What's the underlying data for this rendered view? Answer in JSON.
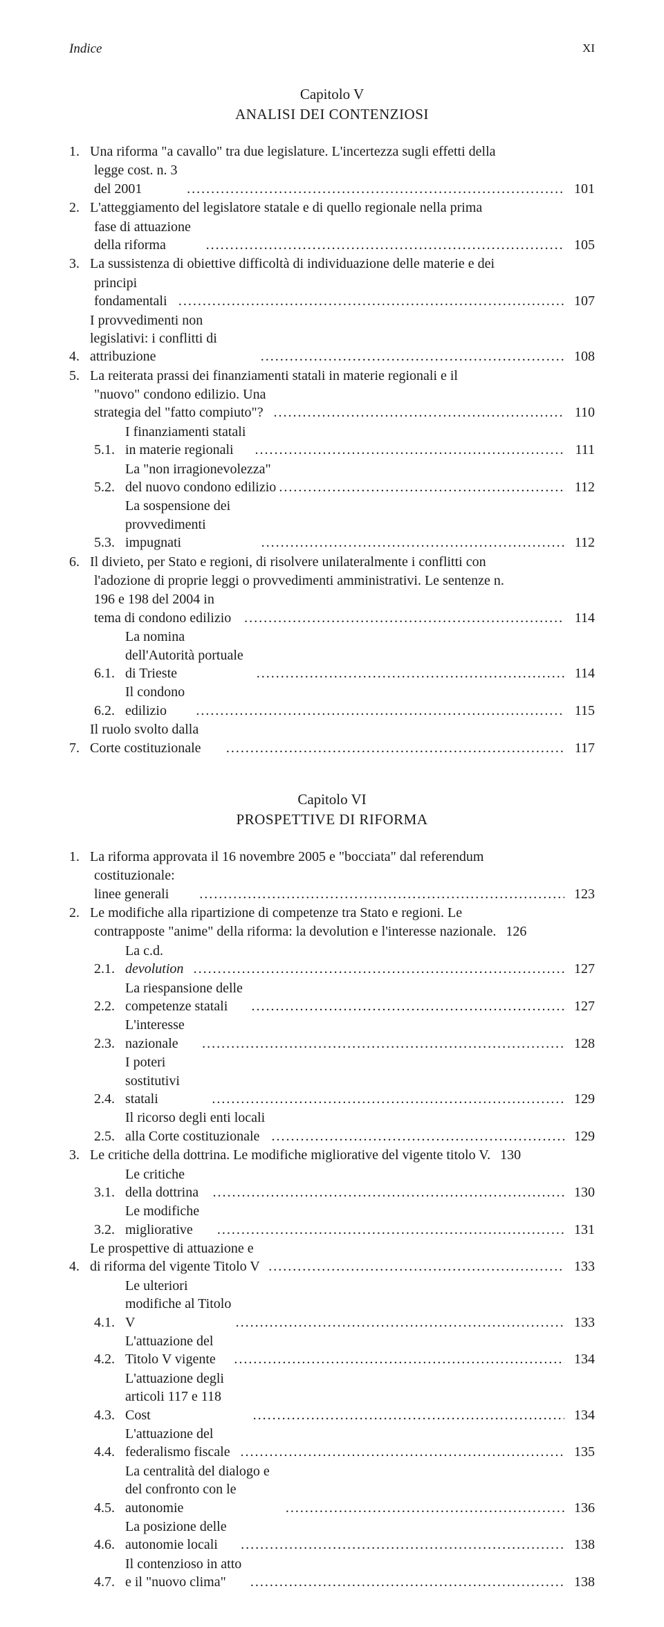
{
  "running": {
    "title": "Indice",
    "page": "XI"
  },
  "chapter5": {
    "label": "Capitolo V",
    "title": "ANALISI DEI CONTENZIOSI"
  },
  "chapter6": {
    "label": "Capitolo VI",
    "title": "PROSPETTIVE DI RIFORMA"
  },
  "c5": {
    "e1": {
      "n": "1.",
      "t": "Una riforma \"a cavallo\" tra due legislature. L'incertezza sugli effetti della"
    },
    "e1b": {
      "t": "legge cost. n. 3 del 2001",
      "p": "101"
    },
    "e2": {
      "n": "2.",
      "t": "L'atteggiamento del legislatore statale e di quello regionale nella prima"
    },
    "e2b": {
      "t": "fase di attuazione della riforma",
      "p": "105"
    },
    "e3": {
      "n": "3.",
      "t": "La sussistenza di obiettive difficoltà di individuazione delle materie e dei"
    },
    "e3b": {
      "t": "principi fondamentali",
      "p": "107"
    },
    "e4": {
      "n": "4.",
      "t": "I provvedimenti non legislativi: i conflitti di attribuzione",
      "p": "108"
    },
    "e5": {
      "n": "5.",
      "t": "La reiterata prassi dei finanziamenti statali in materie regionali e il"
    },
    "e5b": {
      "t": "\"nuovo\" condono edilizio. Una strategia del \"fatto compiuto\"?",
      "p": "110"
    },
    "e51": {
      "n": "5.1.",
      "t": "I finanziamenti statali in materie regionali",
      "p": "111"
    },
    "e52": {
      "n": "5.2.",
      "t": "La \"non irragionevolezza\" del nuovo condono edilizio",
      "p": "112"
    },
    "e53": {
      "n": "5.3.",
      "t": "La sospensione dei provvedimenti impugnati",
      "p": "112"
    },
    "e6": {
      "n": "6.",
      "t": "Il divieto, per Stato e regioni, di risolvere unilateralmente i conflitti con"
    },
    "e6b": {
      "t": "l'adozione di proprie leggi o provvedimenti amministrativi. Le sentenze n."
    },
    "e6c": {
      "t": "196 e 198 del 2004 in tema di condono edilizio",
      "p": "114"
    },
    "e61": {
      "n": "6.1.",
      "t": "La nomina dell'Autorità portuale di Trieste",
      "p": "114"
    },
    "e62": {
      "n": "6.2.",
      "t": "Il condono edilizio",
      "p": "115"
    },
    "e7": {
      "n": "7.",
      "t": "Il ruolo svolto dalla Corte costituzionale",
      "p": "117"
    }
  },
  "c6": {
    "e1": {
      "n": "1.",
      "t": "La riforma approvata il 16 novembre 2005 e \"bocciata\" dal referendum"
    },
    "e1b": {
      "t": "costituzionale: linee generali",
      "p": "123"
    },
    "e2": {
      "n": "2.",
      "t": "Le modifiche alla ripartizione di competenze tra Stato e regioni. Le"
    },
    "e2b": {
      "t": "contrapposte \"anime\" della riforma: la devolution e l'interesse nazionale.",
      "p": "126"
    },
    "e21a": {
      "n": "2.1.",
      "t1": "La c.d. ",
      "t2": "devolution",
      "p": "127"
    },
    "e22": {
      "n": "2.2.",
      "t": "La riespansione delle competenze statali",
      "p": "127"
    },
    "e23": {
      "n": "2.3.",
      "t": "L'interesse nazionale",
      "p": "128"
    },
    "e24": {
      "n": "2.4.",
      "t": "I poteri sostitutivi statali",
      "p": "129"
    },
    "e25": {
      "n": "2.5.",
      "t": "Il ricorso degli enti locali alla Corte costituzionale",
      "p": "129"
    },
    "e3": {
      "n": "3.",
      "t": "Le critiche della dottrina. Le modifiche migliorative del vigente titolo V.",
      "p": "130"
    },
    "e31": {
      "n": "3.1.",
      "t": "Le critiche della dottrina",
      "p": "130"
    },
    "e32": {
      "n": "3.2.",
      "t": "Le modifiche migliorative",
      "p": "131"
    },
    "e4": {
      "n": "4.",
      "t": "Le prospettive di attuazione e di riforma del vigente Titolo V",
      "p": "133"
    },
    "e41": {
      "n": "4.1.",
      "t": "Le ulteriori modifiche al Titolo V",
      "p": "133"
    },
    "e42": {
      "n": "4.2.",
      "t": "L'attuazione del Titolo V vigente",
      "p": "134"
    },
    "e43": {
      "n": "4.3.",
      "t": "L'attuazione degli articoli 117 e 118 Cost",
      "p": "134"
    },
    "e44": {
      "n": "4.4.",
      "t": "L'attuazione del federalismo fiscale",
      "p": "135"
    },
    "e45": {
      "n": "4.5.",
      "t": "La centralità del dialogo e del confronto con le autonomie",
      "p": "136"
    },
    "e46": {
      "n": "4.6.",
      "t": "La posizione delle autonomie locali",
      "p": "138"
    },
    "e47": {
      "n": "4.7.",
      "t": "Il contenzioso in atto e il \"nuovo clima\"",
      "p": "138"
    }
  },
  "dots": "...................................................................................................................."
}
